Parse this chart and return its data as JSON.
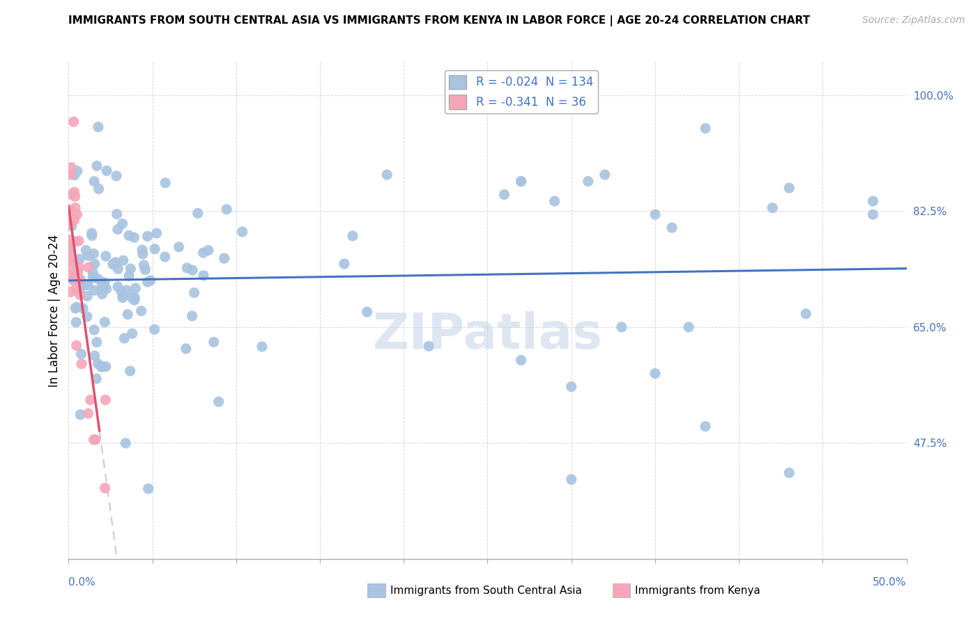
{
  "title": "IMMIGRANTS FROM SOUTH CENTRAL ASIA VS IMMIGRANTS FROM KENYA IN LABOR FORCE | AGE 20-24 CORRELATION CHART",
  "source": "Source: ZipAtlas.com",
  "ylabel": "In Labor Force | Age 20-24",
  "blue_label": "Immigrants from South Central Asia",
  "pink_label": "Immigrants from Kenya",
  "blue_R": -0.024,
  "blue_N": 134,
  "pink_R": -0.341,
  "pink_N": 36,
  "blue_color": "#a8c4e0",
  "pink_color": "#f4a7b9",
  "blue_trend_color": "#4472c4",
  "pink_trend_color": "#e05070",
  "dash_color": "#cccccc",
  "watermark_color": "#c8d8e8",
  "background_color": "#ffffff",
  "axis_label_color": "#4472c4",
  "xlim": [
    0.0,
    0.5
  ],
  "ylim": [
    0.3,
    1.05
  ],
  "ytick_vals": [
    0.475,
    0.65,
    0.825,
    1.0
  ],
  "ytick_labels": [
    "47.5%",
    "65.0%",
    "82.5%",
    "100.0%"
  ]
}
